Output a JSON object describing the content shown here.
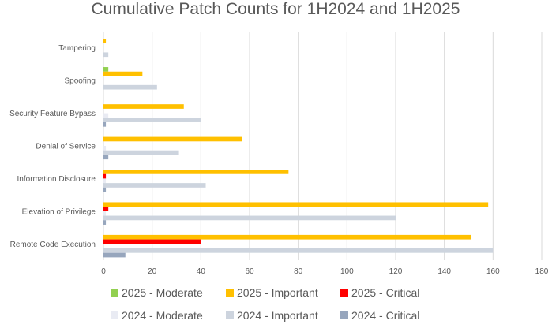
{
  "chart_data": {
    "type": "bar",
    "orientation": "horizontal",
    "title": "Cumulative Patch Counts for 1H2024 and 1H2025",
    "categories": [
      "Tampering",
      "Spoofing",
      "Security Feature Bypass",
      "Denial of Service",
      "Information Disclosure",
      "Elevation of Privilege",
      "Remote Code Execution"
    ],
    "series": [
      {
        "name": "2025 - Moderate",
        "color": "#92d050",
        "values": [
          0,
          2,
          0,
          0,
          0,
          0,
          0
        ]
      },
      {
        "name": "2025 - Important",
        "color": "#ffc000",
        "values": [
          1,
          16,
          33,
          57,
          76,
          158,
          151
        ]
      },
      {
        "name": "2025 - Critical",
        "color": "#ff0000",
        "values": [
          0,
          0,
          0,
          0,
          1,
          2,
          40
        ]
      },
      {
        "name": "2024 - Moderate",
        "color": "#e9ebf3",
        "values": [
          0,
          0,
          2,
          1,
          1,
          1,
          0
        ]
      },
      {
        "name": "2024 - Important",
        "color": "#cdd4de",
        "values": [
          2,
          22,
          40,
          31,
          42,
          120,
          160
        ]
      },
      {
        "name": "2024 - Critical",
        "color": "#97a6bd",
        "values": [
          0,
          0,
          1,
          2,
          1,
          1,
          9
        ]
      }
    ],
    "xlim": [
      0,
      180
    ],
    "xticks": [
      "0",
      "20",
      "40",
      "60",
      "80",
      "100",
      "120",
      "140",
      "160",
      "180"
    ],
    "grid": true,
    "legend_position": "bottom"
  }
}
